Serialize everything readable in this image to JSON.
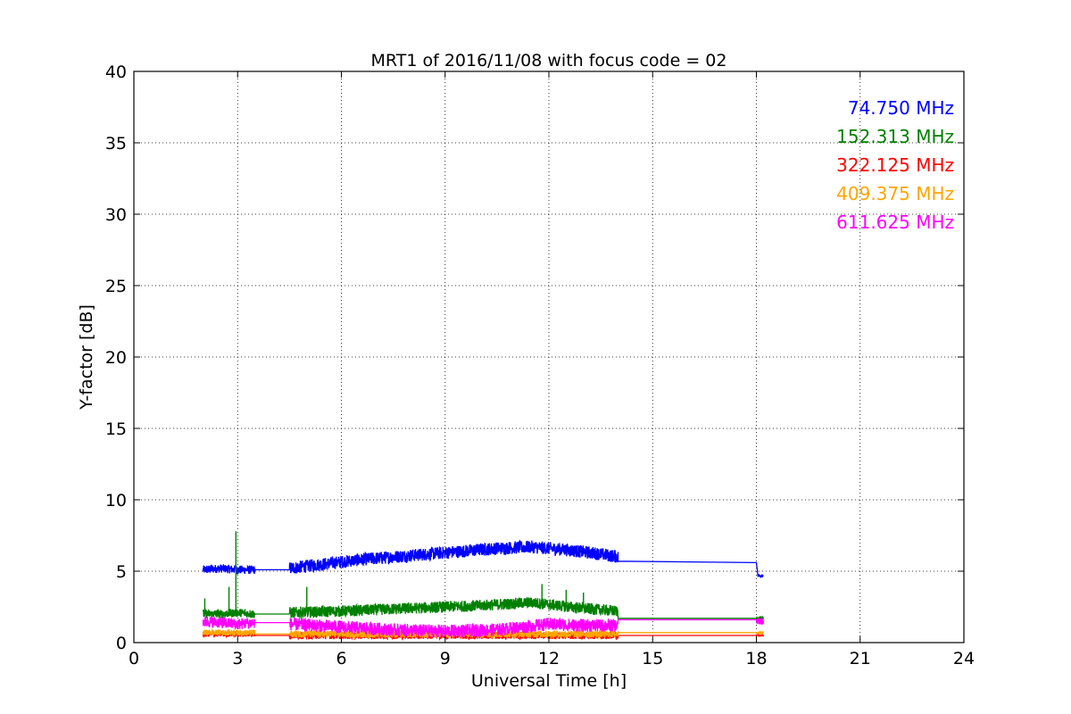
{
  "chart_data": {
    "type": "line",
    "title": "MRT1 of 2016/11/08 with focus code = 02",
    "xlabel": "Universal Time [h]",
    "ylabel": "Y-factor [dB]",
    "xlim": [
      0,
      24
    ],
    "ylim": [
      0,
      40
    ],
    "xticks": [
      0,
      3,
      6,
      9,
      12,
      15,
      18,
      21,
      24
    ],
    "yticks": [
      0,
      5,
      10,
      15,
      20,
      25,
      30,
      35,
      40
    ],
    "grid": true,
    "legend_position": "top-right",
    "series": [
      {
        "name": "74.750 MHz",
        "color": "#0000ff",
        "segments": [
          {
            "x": [
              2.0,
              2.5,
              3.0,
              3.5
            ],
            "y": [
              5.1,
              5.2,
              5.1,
              5.1
            ],
            "noise": 0.6
          },
          {
            "x": [
              3.5,
              4.5
            ],
            "y": [
              5.1,
              5.1
            ],
            "noise": 0
          },
          {
            "x": [
              4.5,
              5.5,
              6.5,
              7.5,
              8.5,
              9.5,
              10.5,
              11.5,
              12.5,
              13.5,
              14.0
            ],
            "y": [
              5.2,
              5.5,
              5.8,
              6.0,
              6.2,
              6.4,
              6.6,
              6.7,
              6.5,
              6.2,
              6.0
            ],
            "noise": 0.9
          },
          {
            "x": [
              14.0,
              18.0
            ],
            "y": [
              5.7,
              5.6
            ],
            "noise": 0
          },
          {
            "x": [
              18.0,
              18.05
            ],
            "y": [
              5.6,
              4.6
            ],
            "noise": 0
          },
          {
            "x": [
              18.05,
              18.2
            ],
            "y": [
              4.7,
              4.7
            ],
            "noise": 0.25
          }
        ]
      },
      {
        "name": "152.313 MHz",
        "color": "#008000",
        "segments": [
          {
            "x": [
              2.0,
              2.5,
              3.0,
              3.5
            ],
            "y": [
              2.0,
              2.0,
              2.1,
              2.0
            ],
            "noise": 0.6
          },
          {
            "x": [
              3.5,
              4.5
            ],
            "y": [
              2.0,
              2.0
            ],
            "noise": 0
          },
          {
            "x": [
              4.5,
              6.0,
              8.0,
              10.0,
              11.5,
              13.0,
              14.0
            ],
            "y": [
              2.1,
              2.2,
              2.4,
              2.6,
              2.8,
              2.4,
              2.2
            ],
            "noise": 0.8
          },
          {
            "x": [
              14.0,
              18.0
            ],
            "y": [
              1.7,
              1.7
            ],
            "noise": 0
          },
          {
            "x": [
              18.0,
              18.2
            ],
            "y": [
              1.7,
              1.7
            ],
            "noise": 0.2
          }
        ],
        "spikes": [
          {
            "x": 2.05,
            "y": 3.1
          },
          {
            "x": 2.75,
            "y": 3.9
          },
          {
            "x": 2.95,
            "y": 7.8
          },
          {
            "x": 5.0,
            "y": 3.9
          },
          {
            "x": 11.8,
            "y": 4.1
          },
          {
            "x": 12.5,
            "y": 3.7
          },
          {
            "x": 13.0,
            "y": 3.5
          }
        ]
      },
      {
        "name": "322.125 MHz",
        "color": "#ff0000",
        "segments": [
          {
            "x": [
              2.0,
              3.5
            ],
            "y": [
              0.6,
              0.6
            ],
            "noise": 0.4
          },
          {
            "x": [
              3.5,
              4.5
            ],
            "y": [
              0.5,
              0.5
            ],
            "noise": 0
          },
          {
            "x": [
              4.5,
              14.0
            ],
            "y": [
              0.5,
              0.5
            ],
            "noise": 0.5
          },
          {
            "x": [
              14.0,
              18.0
            ],
            "y": [
              0.5,
              0.5
            ],
            "noise": 0
          },
          {
            "x": [
              18.0,
              18.2
            ],
            "y": [
              0.5,
              0.5
            ],
            "noise": 0.15
          }
        ]
      },
      {
        "name": "409.375 MHz",
        "color": "#ffa500",
        "segments": [
          {
            "x": [
              2.0,
              3.5
            ],
            "y": [
              0.7,
              0.7
            ],
            "noise": 0.4
          },
          {
            "x": [
              3.5,
              4.5
            ],
            "y": [
              0.6,
              0.6
            ],
            "noise": 0
          },
          {
            "x": [
              4.5,
              14.0
            ],
            "y": [
              0.6,
              0.6
            ],
            "noise": 0.5
          },
          {
            "x": [
              14.0,
              18.0
            ],
            "y": [
              0.7,
              0.7
            ],
            "noise": 0
          },
          {
            "x": [
              18.0,
              18.2
            ],
            "y": [
              0.7,
              0.7
            ],
            "noise": 0.15
          }
        ]
      },
      {
        "name": "611.625 MHz",
        "color": "#ff00ff",
        "segments": [
          {
            "x": [
              2.0,
              2.5,
              3.0,
              3.5
            ],
            "y": [
              1.5,
              1.4,
              1.3,
              1.4
            ],
            "noise": 0.8
          },
          {
            "x": [
              3.5,
              4.5
            ],
            "y": [
              1.4,
              1.4
            ],
            "noise": 0
          },
          {
            "x": [
              4.5,
              6.0,
              7.5,
              9.0,
              10.5,
              12.0,
              13.0,
              14.0
            ],
            "y": [
              1.3,
              1.1,
              0.9,
              0.8,
              0.9,
              1.3,
              1.2,
              1.2
            ],
            "noise": 0.9
          },
          {
            "x": [
              14.0,
              18.0
            ],
            "y": [
              1.6,
              1.6
            ],
            "noise": 0
          },
          {
            "x": [
              18.0,
              18.2
            ],
            "y": [
              1.5,
              1.5
            ],
            "noise": 0.5
          }
        ]
      }
    ]
  }
}
